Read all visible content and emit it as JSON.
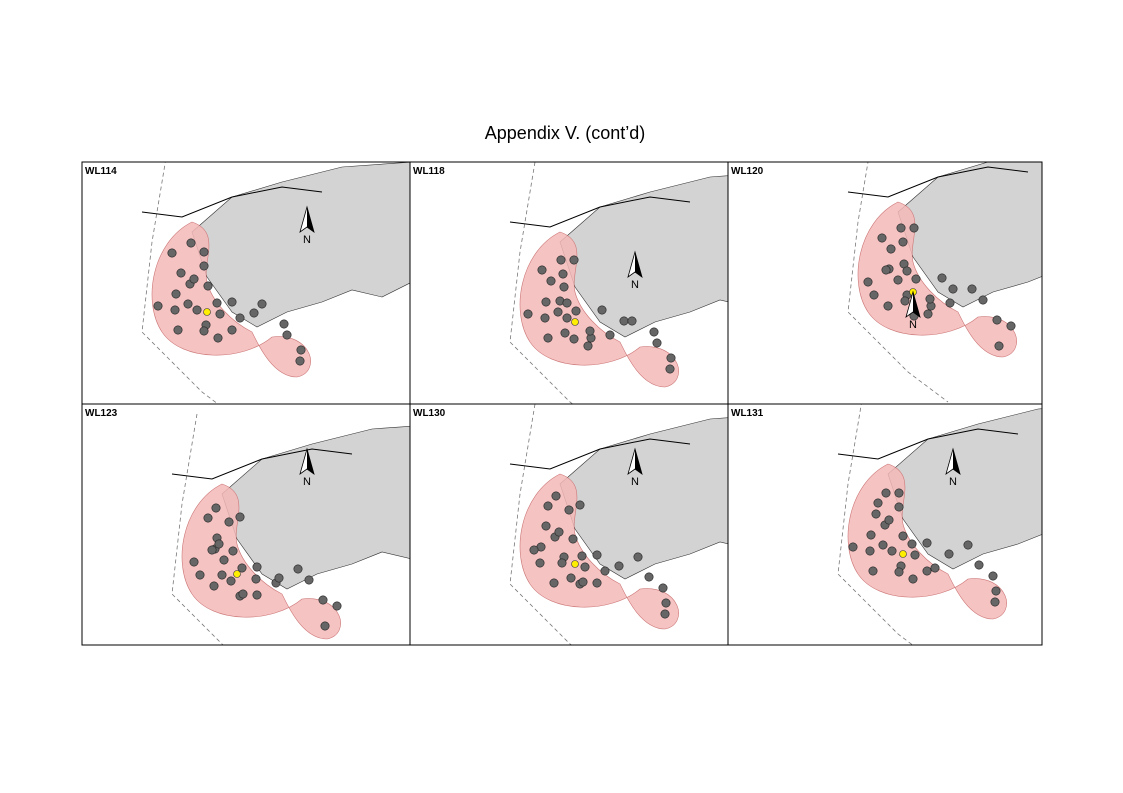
{
  "title": "Appendix V.  (cont’d)",
  "panels": [
    {
      "label": "WL114",
      "north": "N"
    },
    {
      "label": "WL118",
      "north": "N"
    },
    {
      "label": "WL120",
      "north": "N"
    },
    {
      "label": "WL123",
      "north": "N"
    },
    {
      "label": "WL130",
      "north": "N"
    },
    {
      "label": "WL131",
      "north": "N"
    }
  ]
}
